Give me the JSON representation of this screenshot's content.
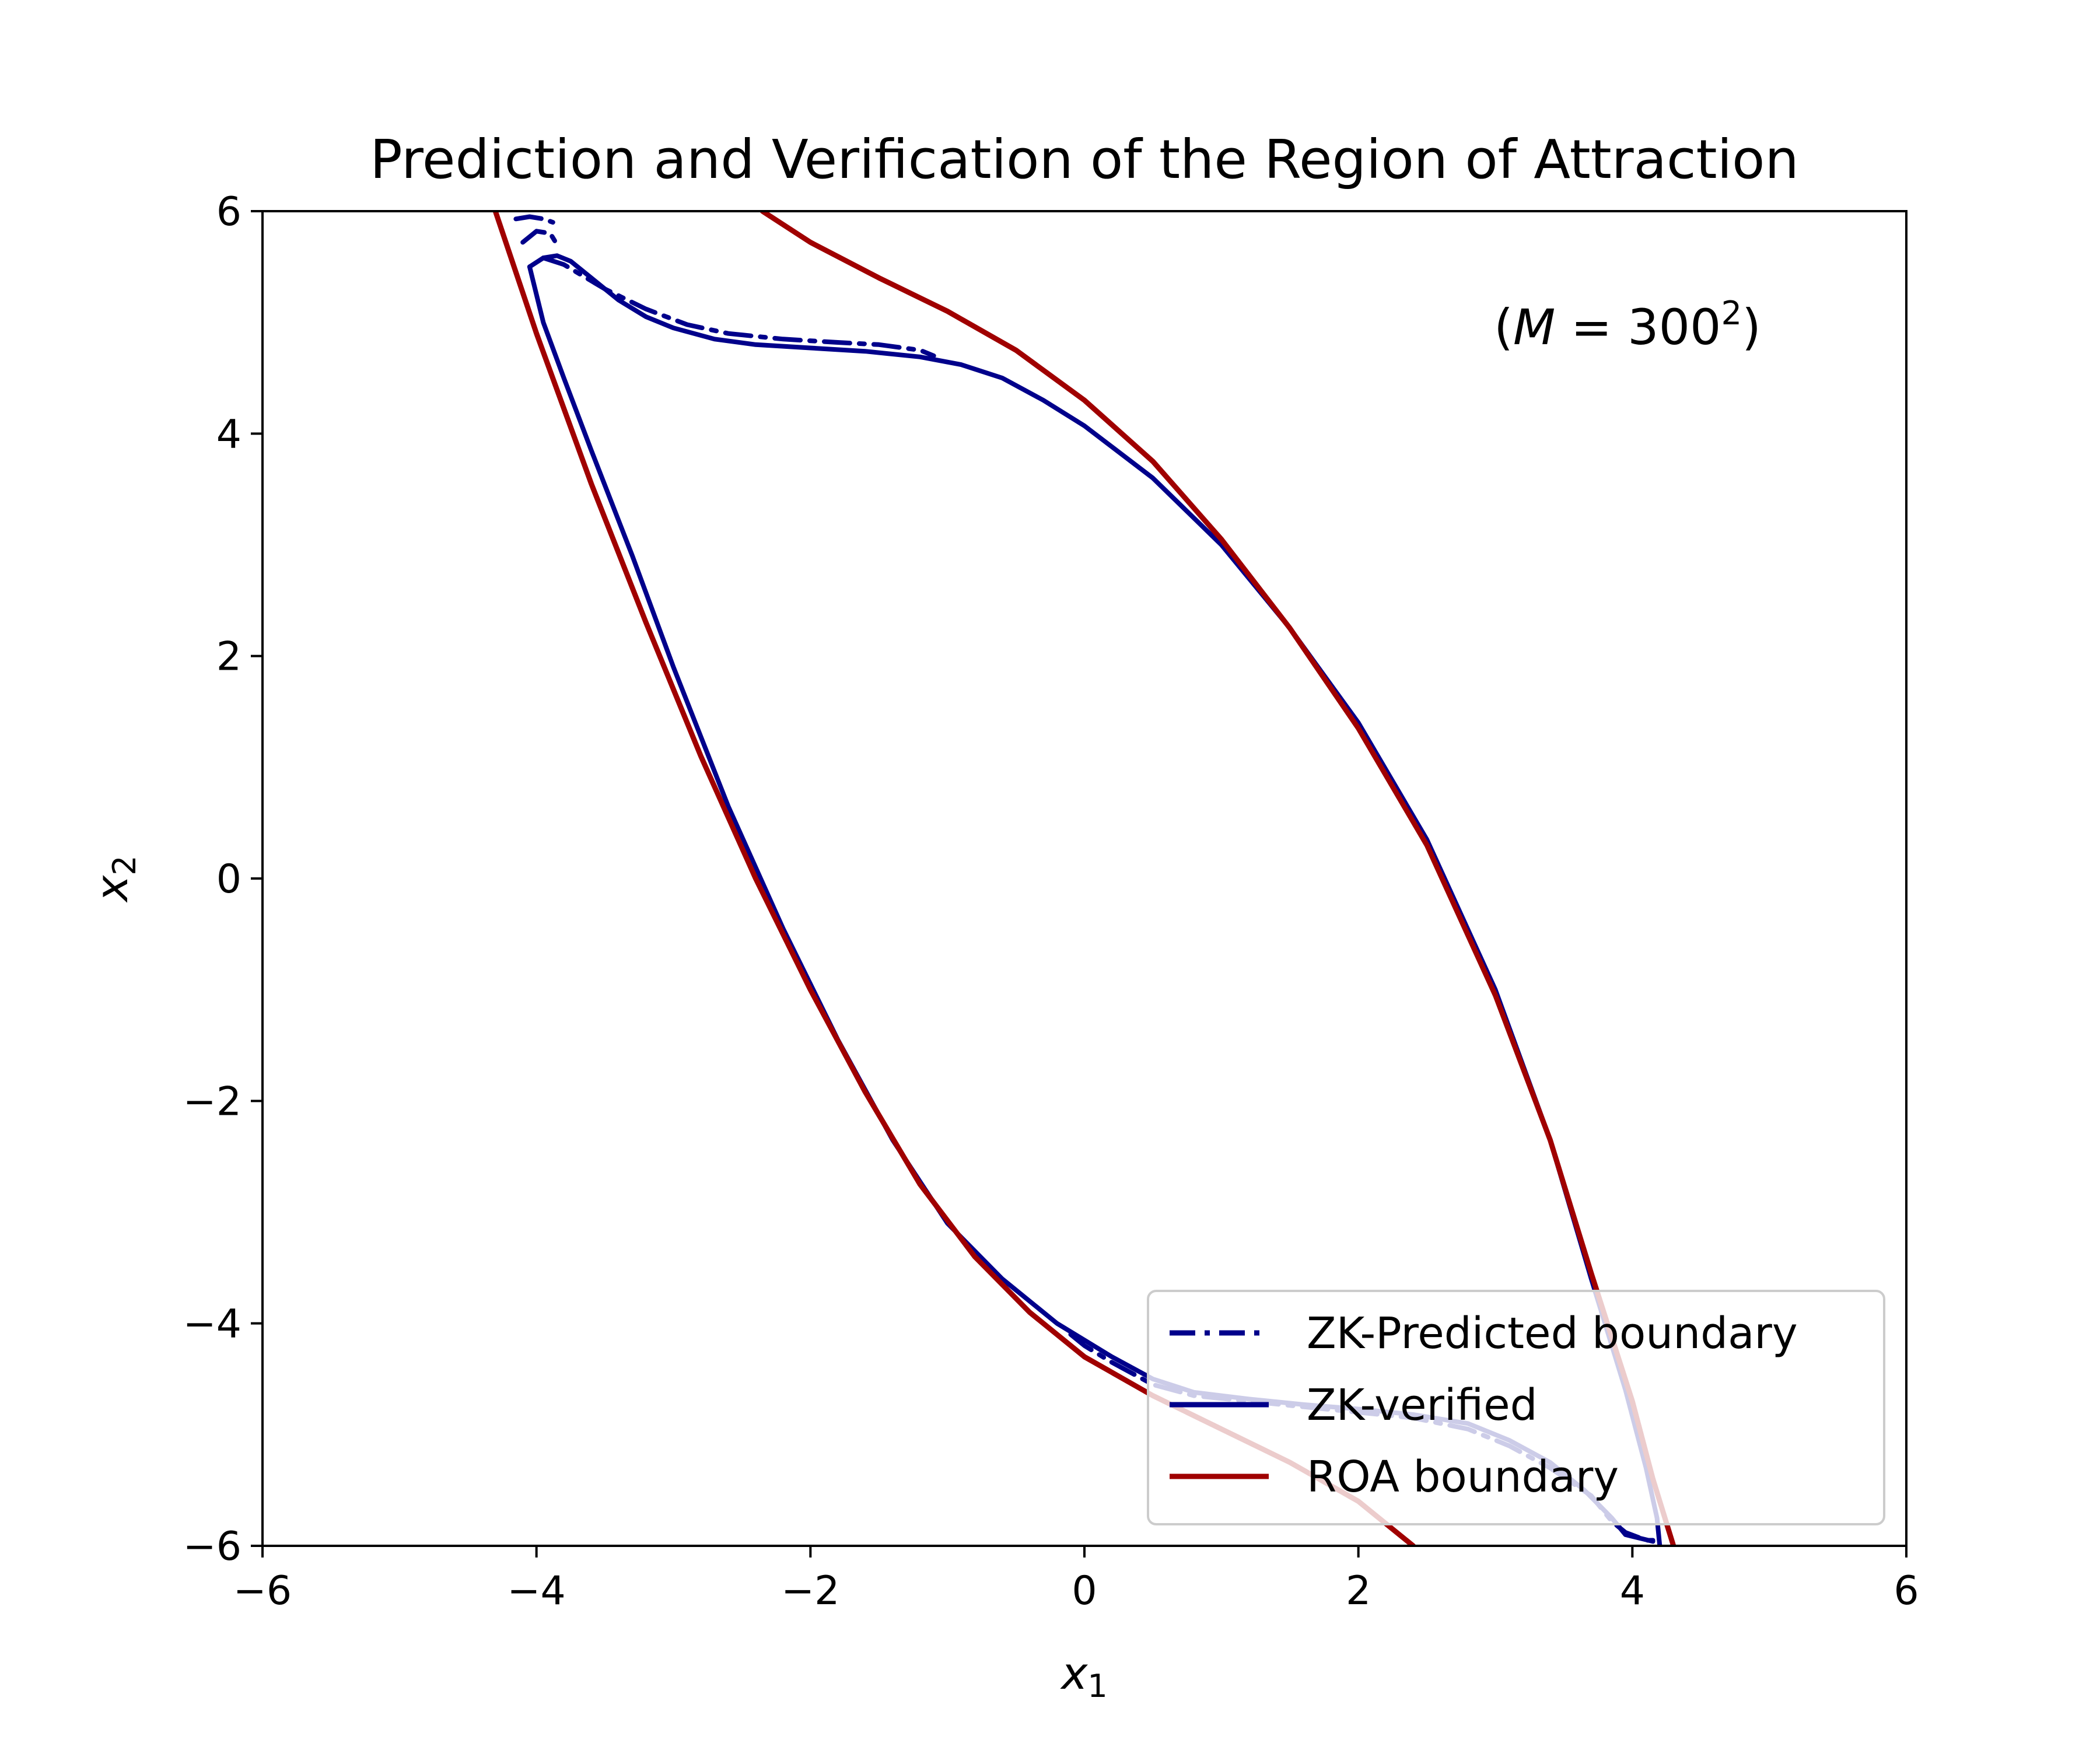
{
  "chart_data": {
    "type": "line",
    "title": "Prediction and Verification of the Region of Attraction",
    "annotation": {
      "open": "(",
      "symbol": "M",
      "equals": " = 300",
      "exponent": "2",
      "close": ")"
    },
    "xlabel": {
      "base": "x",
      "sub": "1"
    },
    "ylabel": {
      "base": "x",
      "sub": "2"
    },
    "xlim": [
      -6,
      6
    ],
    "ylim": [
      -6,
      6
    ],
    "xticks": [
      -6,
      -4,
      -2,
      0,
      2,
      4,
      6
    ],
    "yticks": [
      -6,
      -4,
      -2,
      0,
      2,
      4,
      6
    ],
    "xtick_labels": [
      "−6",
      "−4",
      "−2",
      "0",
      "2",
      "4",
      "6"
    ],
    "ytick_labels": [
      "−6",
      "−4",
      "−2",
      "0",
      "2",
      "4",
      "6"
    ],
    "grid": false,
    "legend_position": "bottom-right",
    "series": [
      {
        "name": "ZK-Predicted boundary",
        "color": "#00008b",
        "style": "dashdot",
        "segments": [
          [
            [
              -3.95,
              5.58
            ],
            [
              -3.8,
              5.52
            ],
            [
              -3.5,
              5.3
            ],
            [
              -3.2,
              5.12
            ],
            [
              -2.9,
              4.98
            ],
            [
              -2.6,
              4.9
            ],
            [
              -2.2,
              4.85
            ],
            [
              -1.8,
              4.82
            ],
            [
              -1.5,
              4.8
            ],
            [
              -1.2,
              4.75
            ],
            [
              -1.1,
              4.7
            ]
          ],
          [
            [
              -4.1,
              5.72
            ],
            [
              -4.0,
              5.82
            ],
            [
              -3.9,
              5.8
            ],
            [
              -3.85,
              5.7
            ]
          ],
          [
            [
              -4.15,
              5.93
            ],
            [
              -4.05,
              5.95
            ],
            [
              -3.95,
              5.93
            ],
            [
              -3.88,
              5.9
            ]
          ],
          [
            [
              -0.1,
              -4.1
            ],
            [
              0.0,
              -4.2
            ],
            [
              0.2,
              -4.35
            ],
            [
              0.5,
              -4.55
            ],
            [
              0.8,
              -4.65
            ],
            [
              1.2,
              -4.7
            ],
            [
              1.6,
              -4.75
            ],
            [
              2.0,
              -4.8
            ],
            [
              2.4,
              -4.85
            ],
            [
              2.8,
              -4.95
            ],
            [
              3.1,
              -5.1
            ],
            [
              3.4,
              -5.3
            ],
            [
              3.7,
              -5.55
            ],
            [
              3.85,
              -5.78
            ],
            [
              3.95,
              -5.88
            ],
            [
              4.1,
              -5.95
            ],
            [
              4.2,
              -5.95
            ]
          ]
        ]
      },
      {
        "name": "ZK-verified",
        "color": "#00008b",
        "style": "solid",
        "segments": [
          [
            [
              -4.05,
              5.5
            ],
            [
              -3.95,
              5.58
            ],
            [
              -3.85,
              5.6
            ],
            [
              -3.75,
              5.55
            ],
            [
              -3.6,
              5.4
            ],
            [
              -3.4,
              5.2
            ],
            [
              -3.2,
              5.05
            ],
            [
              -3.0,
              4.95
            ],
            [
              -2.7,
              4.85
            ],
            [
              -2.4,
              4.8
            ],
            [
              -2.0,
              4.77
            ],
            [
              -1.6,
              4.74
            ],
            [
              -1.2,
              4.69
            ],
            [
              -0.9,
              4.62
            ],
            [
              -0.6,
              4.5
            ],
            [
              -0.3,
              4.3
            ],
            [
              0.0,
              4.07
            ],
            [
              0.5,
              3.6
            ],
            [
              1.0,
              3.0
            ],
            [
              1.5,
              2.25
            ],
            [
              2.0,
              1.4
            ],
            [
              2.5,
              0.35
            ],
            [
              3.0,
              -1.0
            ],
            [
              3.4,
              -2.35
            ],
            [
              3.7,
              -3.6
            ],
            [
              3.95,
              -4.6
            ],
            [
              4.1,
              -5.3
            ],
            [
              4.18,
              -5.75
            ],
            [
              4.2,
              -6.0
            ]
          ],
          [
            [
              -4.05,
              5.5
            ],
            [
              -3.95,
              5.0
            ],
            [
              -3.8,
              4.5
            ],
            [
              -3.6,
              3.85
            ],
            [
              -3.3,
              2.9
            ],
            [
              -3.0,
              1.9
            ],
            [
              -2.6,
              0.65
            ],
            [
              -2.2,
              -0.45
            ],
            [
              -1.8,
              -1.45
            ],
            [
              -1.4,
              -2.35
            ],
            [
              -1.0,
              -3.1
            ],
            [
              -0.6,
              -3.6
            ],
            [
              -0.2,
              -4.0
            ],
            [
              0.2,
              -4.3
            ],
            [
              0.5,
              -4.5
            ],
            [
              0.8,
              -4.62
            ],
            [
              1.2,
              -4.68
            ],
            [
              1.6,
              -4.73
            ],
            [
              2.0,
              -4.77
            ],
            [
              2.4,
              -4.82
            ],
            [
              2.8,
              -4.9
            ],
            [
              3.1,
              -5.05
            ],
            [
              3.4,
              -5.25
            ],
            [
              3.65,
              -5.5
            ],
            [
              3.85,
              -5.75
            ],
            [
              3.95,
              -5.9
            ],
            [
              4.15,
              -5.96
            ]
          ]
        ]
      },
      {
        "name": "ROA boundary",
        "color": "#a00000",
        "style": "solid",
        "segments": [
          [
            [
              -2.35,
              6.0
            ],
            [
              -2.0,
              5.72
            ],
            [
              -1.5,
              5.4
            ],
            [
              -1.0,
              5.1
            ],
            [
              -0.5,
              4.75
            ],
            [
              0.0,
              4.3
            ],
            [
              0.5,
              3.75
            ],
            [
              1.0,
              3.05
            ],
            [
              1.5,
              2.25
            ],
            [
              2.0,
              1.35
            ],
            [
              2.5,
              0.3
            ],
            [
              3.0,
              -1.05
            ],
            [
              3.4,
              -2.35
            ],
            [
              3.7,
              -3.55
            ],
            [
              4.0,
              -4.7
            ],
            [
              4.15,
              -5.4
            ],
            [
              4.3,
              -6.0
            ]
          ],
          [
            [
              -4.3,
              6.0
            ],
            [
              -4.0,
              4.9
            ],
            [
              -3.6,
              3.55
            ],
            [
              -3.2,
              2.3
            ],
            [
              -2.8,
              1.1
            ],
            [
              -2.4,
              0.0
            ],
            [
              -2.0,
              -1.0
            ],
            [
              -1.6,
              -1.92
            ],
            [
              -1.2,
              -2.75
            ],
            [
              -0.8,
              -3.4
            ],
            [
              -0.4,
              -3.9
            ],
            [
              0.0,
              -4.3
            ],
            [
              0.5,
              -4.65
            ],
            [
              1.0,
              -4.95
            ],
            [
              1.5,
              -5.25
            ],
            [
              2.0,
              -5.6
            ],
            [
              2.4,
              -6.0
            ]
          ]
        ]
      }
    ]
  }
}
